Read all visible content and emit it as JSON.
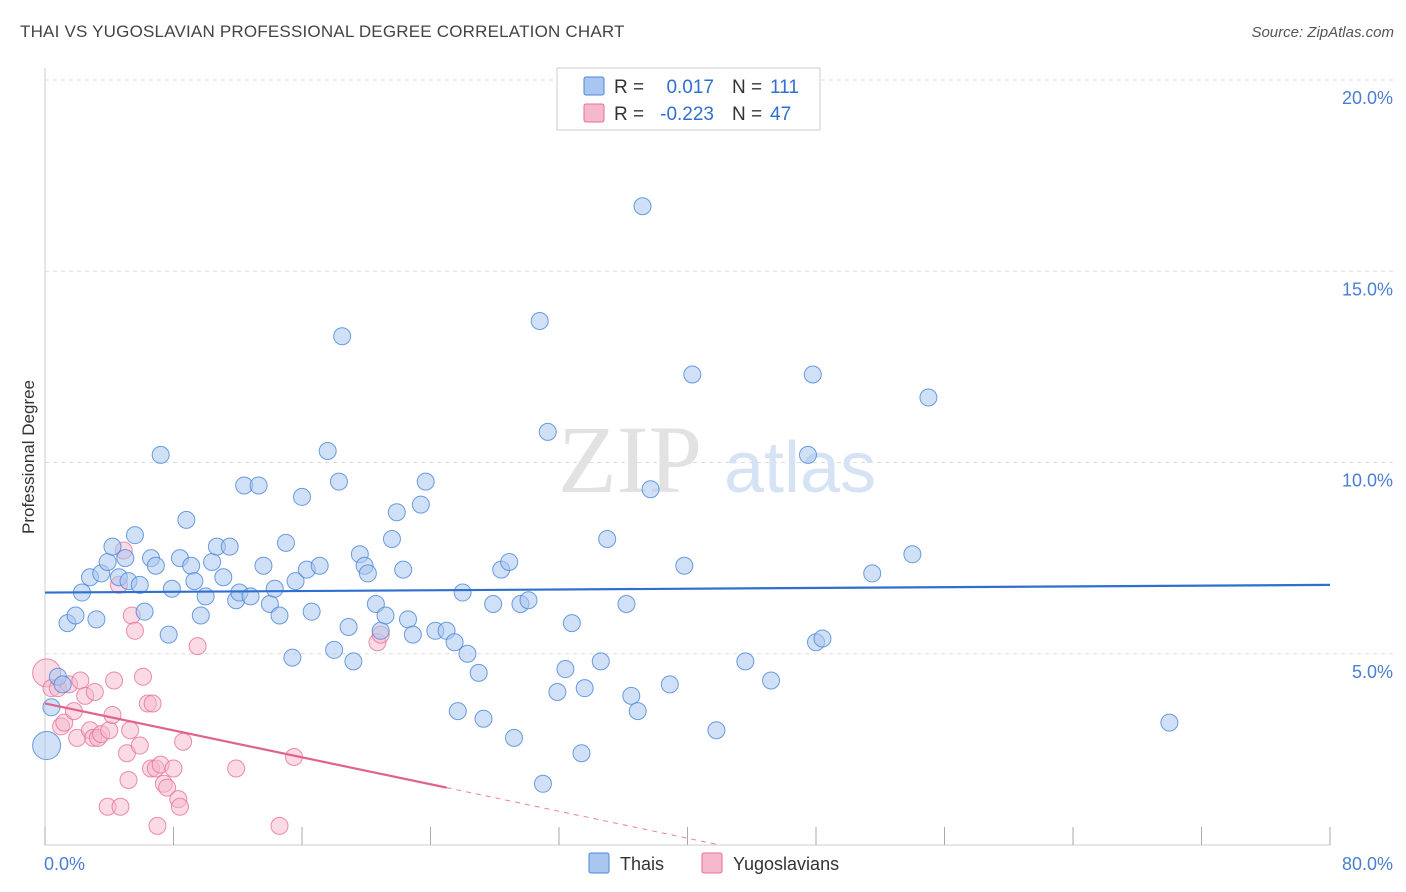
{
  "header": {
    "title": "THAI VS YUGOSLAVIAN PROFESSIONAL DEGREE CORRELATION CHART",
    "source": "Source: ZipAtlas.com"
  },
  "watermark": {
    "zip": "ZIP",
    "atlas": "atlas"
  },
  "colors": {
    "blue": "#4a86d8",
    "blue_fill": "#a9c6f0",
    "blue_line": "#2f6fcf",
    "pink": "#e8709a",
    "pink_fill": "#f6b8cc",
    "pink_line": "#e0638e",
    "grid": "#dddddd",
    "tick_label": "#4a7fd0"
  },
  "legend_stats": [
    {
      "r_label": "R =",
      "r_value": "0.017",
      "n_label": "N =",
      "n_value": "111"
    },
    {
      "r_label": "R =",
      "r_value": "-0.223",
      "n_label": "N =",
      "n_value": "47"
    }
  ],
  "chart_data": {
    "type": "scatter",
    "title": "THAI VS YUGOSLAVIAN PROFESSIONAL DEGREE CORRELATION CHART",
    "xlabel": "",
    "ylabel": "Professional Degree",
    "xlim": [
      0,
      80
    ],
    "ylim": [
      0,
      20
    ],
    "x_tick_labels": [
      "0.0%",
      "80.0%"
    ],
    "y_ticks": [
      5,
      10,
      15,
      20
    ],
    "y_tick_labels": [
      "5.0%",
      "10.0%",
      "15.0%",
      "20.0%"
    ],
    "grid": "horizontal dashed",
    "legend_position": "bottom",
    "series": [
      {
        "name": "Thais",
        "color": "#4a86d8",
        "trend": {
          "x": [
            0,
            80
          ],
          "y": [
            6.6,
            6.8
          ]
        },
        "points": [
          [
            0.1,
            2.6
          ],
          [
            0.4,
            3.6
          ],
          [
            0.8,
            4.4
          ],
          [
            1.1,
            4.2
          ],
          [
            1.4,
            5.8
          ],
          [
            1.9,
            6.0
          ],
          [
            2.3,
            6.6
          ],
          [
            2.8,
            7.0
          ],
          [
            3.2,
            5.9
          ],
          [
            3.5,
            7.1
          ],
          [
            3.9,
            7.4
          ],
          [
            4.2,
            7.8
          ],
          [
            4.6,
            7.0
          ],
          [
            5.0,
            7.5
          ],
          [
            5.2,
            6.9
          ],
          [
            5.6,
            8.1
          ],
          [
            5.9,
            6.8
          ],
          [
            6.2,
            6.1
          ],
          [
            6.6,
            7.5
          ],
          [
            6.9,
            7.3
          ],
          [
            7.2,
            10.2
          ],
          [
            7.7,
            5.5
          ],
          [
            7.9,
            6.7
          ],
          [
            8.4,
            7.5
          ],
          [
            8.8,
            8.5
          ],
          [
            9.1,
            7.3
          ],
          [
            9.3,
            6.9
          ],
          [
            9.7,
            6.0
          ],
          [
            10.0,
            6.5
          ],
          [
            10.4,
            7.4
          ],
          [
            10.7,
            7.8
          ],
          [
            11.1,
            7.0
          ],
          [
            11.5,
            7.8
          ],
          [
            11.9,
            6.4
          ],
          [
            12.1,
            6.6
          ],
          [
            12.4,
            9.4
          ],
          [
            12.8,
            6.5
          ],
          [
            13.3,
            9.4
          ],
          [
            13.6,
            7.3
          ],
          [
            14.0,
            6.3
          ],
          [
            14.3,
            6.7
          ],
          [
            14.6,
            6.0
          ],
          [
            15.0,
            7.9
          ],
          [
            15.4,
            4.9
          ],
          [
            15.6,
            6.9
          ],
          [
            16.0,
            9.1
          ],
          [
            16.3,
            7.2
          ],
          [
            16.6,
            6.1
          ],
          [
            17.1,
            7.3
          ],
          [
            17.6,
            10.3
          ],
          [
            18.0,
            5.1
          ],
          [
            18.3,
            9.5
          ],
          [
            18.5,
            13.3
          ],
          [
            18.9,
            5.7
          ],
          [
            19.2,
            4.8
          ],
          [
            19.6,
            7.6
          ],
          [
            19.9,
            7.3
          ],
          [
            20.1,
            7.1
          ],
          [
            20.6,
            6.3
          ],
          [
            20.9,
            5.6
          ],
          [
            21.2,
            6.0
          ],
          [
            21.6,
            8.0
          ],
          [
            21.9,
            8.7
          ],
          [
            22.3,
            7.2
          ],
          [
            22.6,
            5.9
          ],
          [
            22.9,
            5.5
          ],
          [
            23.4,
            8.9
          ],
          [
            23.7,
            9.5
          ],
          [
            24.3,
            5.6
          ],
          [
            25.0,
            5.6
          ],
          [
            25.5,
            5.3
          ],
          [
            25.7,
            3.5
          ],
          [
            26.0,
            6.6
          ],
          [
            26.3,
            5.0
          ],
          [
            27.0,
            4.5
          ],
          [
            27.3,
            3.3
          ],
          [
            27.9,
            6.3
          ],
          [
            28.4,
            7.2
          ],
          [
            28.9,
            7.4
          ],
          [
            29.2,
            2.8
          ],
          [
            29.6,
            6.3
          ],
          [
            30.1,
            6.4
          ],
          [
            30.8,
            13.7
          ],
          [
            31.0,
            1.6
          ],
          [
            31.3,
            10.8
          ],
          [
            31.9,
            4.0
          ],
          [
            32.4,
            4.6
          ],
          [
            32.8,
            5.8
          ],
          [
            33.4,
            2.4
          ],
          [
            33.6,
            4.1
          ],
          [
            34.6,
            4.8
          ],
          [
            35.0,
            8.0
          ],
          [
            36.2,
            6.3
          ],
          [
            36.5,
            3.9
          ],
          [
            36.9,
            3.5
          ],
          [
            37.2,
            16.7
          ],
          [
            37.7,
            9.3
          ],
          [
            38.9,
            4.2
          ],
          [
            39.8,
            7.3
          ],
          [
            40.3,
            12.3
          ],
          [
            41.8,
            3.0
          ],
          [
            43.6,
            4.8
          ],
          [
            45.2,
            4.3
          ],
          [
            47.5,
            10.2
          ],
          [
            47.8,
            12.3
          ],
          [
            48.0,
            5.3
          ],
          [
            48.4,
            5.4
          ],
          [
            51.5,
            7.1
          ],
          [
            54.0,
            7.6
          ],
          [
            55.0,
            11.7
          ],
          [
            70.0,
            3.2
          ]
        ],
        "sizes": {
          "0.1,2.6": "large"
        }
      },
      {
        "name": "Yugoslavians",
        "color": "#e8709a",
        "trend": {
          "x": [
            0,
            25
          ],
          "y": [
            3.7,
            1.5
          ],
          "dashed_extension": {
            "x": [
              25,
              42
            ],
            "y": [
              1.5,
              0.0
            ]
          }
        },
        "points": [
          [
            0.1,
            4.5
          ],
          [
            0.4,
            4.1
          ],
          [
            0.8,
            4.1
          ],
          [
            1.0,
            3.1
          ],
          [
            1.2,
            3.2
          ],
          [
            1.5,
            4.2
          ],
          [
            1.8,
            3.5
          ],
          [
            2.0,
            2.8
          ],
          [
            2.2,
            4.3
          ],
          [
            2.5,
            3.9
          ],
          [
            2.8,
            3.0
          ],
          [
            3.0,
            2.8
          ],
          [
            3.1,
            4.0
          ],
          [
            3.3,
            2.8
          ],
          [
            3.5,
            2.9
          ],
          [
            3.9,
            1.0
          ],
          [
            4.0,
            3.0
          ],
          [
            4.2,
            3.4
          ],
          [
            4.3,
            4.3
          ],
          [
            4.6,
            6.8
          ],
          [
            4.7,
            1.0
          ],
          [
            4.9,
            7.7
          ],
          [
            5.1,
            2.4
          ],
          [
            5.3,
            3.0
          ],
          [
            5.4,
            6.0
          ],
          [
            5.6,
            5.6
          ],
          [
            5.9,
            2.6
          ],
          [
            6.1,
            4.4
          ],
          [
            6.4,
            3.7
          ],
          [
            6.6,
            2.0
          ],
          [
            6.7,
            3.7
          ],
          [
            6.9,
            2.0
          ],
          [
            7.0,
            0.5
          ],
          [
            7.2,
            2.1
          ],
          [
            7.4,
            1.6
          ],
          [
            7.6,
            1.5
          ],
          [
            8.0,
            2.0
          ],
          [
            8.3,
            1.2
          ],
          [
            8.4,
            1.0
          ],
          [
            8.6,
            2.7
          ],
          [
            9.5,
            5.2
          ],
          [
            11.9,
            2.0
          ],
          [
            14.6,
            0.5
          ],
          [
            15.5,
            2.3
          ],
          [
            20.7,
            5.3
          ],
          [
            20.9,
            5.5
          ],
          [
            5.2,
            1.7
          ]
        ]
      }
    ]
  },
  "bottom_legend": [
    {
      "label": "Thais"
    },
    {
      "label": "Yugoslavians"
    }
  ]
}
